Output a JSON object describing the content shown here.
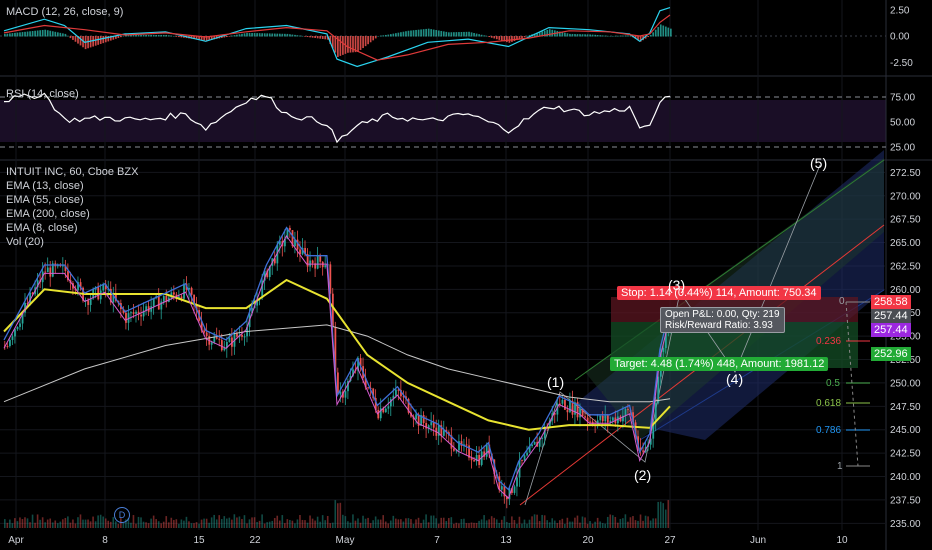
{
  "panes": {
    "macd": {
      "label": "MACD (12, 26, close, 9)",
      "ticks": [
        "2.50",
        "0.00",
        "-2.50"
      ]
    },
    "rsi": {
      "label": "RSI (14, close)",
      "ticks": [
        "75.00",
        "50.00",
        "25.00"
      ]
    },
    "price": {
      "symbol_label": "INTUIT INC, 60, Cboe BZX",
      "indicators": [
        "EMA (13, close)",
        "EMA (55, close)",
        "EMA (200, close)",
        "EMA (8, close)",
        "Vol (20)"
      ],
      "ticks": [
        "272.50",
        "270.00",
        "267.50",
        "265.00",
        "262.50",
        "260.00",
        "257.50",
        "255.00",
        "252.50",
        "250.00",
        "247.50",
        "245.00",
        "242.50",
        "240.00",
        "237.50",
        "235.00"
      ]
    }
  },
  "price_tags": {
    "stop": "258.58",
    "current": "257.44",
    "purple": "257.44",
    "target": "252.96"
  },
  "x_axis": [
    "Apr",
    "8",
    "15",
    "22",
    "May",
    "7",
    "13",
    "20",
    "27",
    "Jun",
    "10"
  ],
  "position_tool": {
    "stop_label": "Stop: 1.14 (0.44%) 114, Amount: 750.34",
    "open_pnl": "Open P&L: 0.00, Qty: 219",
    "risk_reward": "Risk/Reward Ratio: 3.93",
    "target_label": "Target: 4.48 (1.74%) 448, Amount: 1981.12"
  },
  "fib_levels": [
    "0",
    "0.236",
    "0.5",
    "0.618",
    "0.786",
    "1"
  ],
  "wave_labels": [
    "(1)",
    "(2)",
    "(3)",
    "(4)",
    "(5)"
  ],
  "dividend_marker": "D",
  "colors": {
    "up": "#26a69a",
    "down": "#ef5350",
    "ema55": "#e8e330",
    "ema200": "#c8c8c8",
    "ema13": "#3f6fd8",
    "stop": "#f23645",
    "target": "#22ab36",
    "purple": "#9c27e0",
    "macd": "#2ad4f0",
    "signal": "#e03a3a"
  },
  "chart_data": {
    "type": "candlestick",
    "symbol": "INTUIT INC",
    "interval": "60",
    "ylim": [
      234.5,
      273.5
    ],
    "x": [
      "Apr 1",
      "Apr 8",
      "Apr 15",
      "Apr 22",
      "May 1",
      "May 7",
      "May 13",
      "May 20",
      "May 27",
      "Jun 3",
      "Jun 10"
    ],
    "price_path": [
      [
        0,
        254
      ],
      [
        2,
        258
      ],
      [
        4,
        262
      ],
      [
        6,
        262
      ],
      [
        8,
        259
      ],
      [
        10,
        260
      ],
      [
        12,
        257
      ],
      [
        14,
        258
      ],
      [
        16,
        259
      ],
      [
        18,
        260
      ],
      [
        20,
        255
      ],
      [
        22,
        254
      ],
      [
        24,
        256
      ],
      [
        26,
        262
      ],
      [
        28,
        266
      ],
      [
        30,
        263
      ],
      [
        32,
        263
      ],
      [
        33,
        248
      ],
      [
        35,
        252
      ],
      [
        37,
        247
      ],
      [
        39,
        249
      ],
      [
        41,
        246
      ],
      [
        43,
        245
      ],
      [
        45,
        243
      ],
      [
        47,
        242
      ],
      [
        48,
        243
      ],
      [
        49,
        239
      ],
      [
        50,
        238
      ],
      [
        51,
        241
      ],
      [
        53,
        244
      ],
      [
        55,
        248
      ],
      [
        57,
        247
      ],
      [
        58,
        246
      ],
      [
        60,
        246
      ],
      [
        62,
        247
      ],
      [
        63,
        242
      ],
      [
        64,
        244
      ],
      [
        65,
        253
      ],
      [
        66,
        257.4
      ]
    ],
    "ema55": [
      [
        0,
        255.5
      ],
      [
        4,
        260
      ],
      [
        8,
        259.5
      ],
      [
        12,
        259.5
      ],
      [
        16,
        259.5
      ],
      [
        20,
        258
      ],
      [
        24,
        258
      ],
      [
        28,
        261
      ],
      [
        32,
        259
      ],
      [
        36,
        253
      ],
      [
        40,
        250
      ],
      [
        44,
        248
      ],
      [
        48,
        246
      ],
      [
        52,
        245
      ],
      [
        56,
        245.5
      ],
      [
        60,
        245.5
      ],
      [
        64,
        245.2
      ],
      [
        66,
        247.5
      ]
    ],
    "ema200": [
      [
        0,
        248
      ],
      [
        8,
        251.5
      ],
      [
        16,
        254
      ],
      [
        24,
        255.5
      ],
      [
        32,
        256.2
      ],
      [
        36,
        255
      ],
      [
        40,
        253
      ],
      [
        44,
        251.5
      ],
      [
        48,
        250.5
      ],
      [
        52,
        249.5
      ],
      [
        56,
        248.5
      ],
      [
        60,
        248
      ],
      [
        64,
        248
      ],
      [
        66,
        248.3
      ]
    ],
    "rsi": [
      [
        0,
        72
      ],
      [
        4,
        78
      ],
      [
        6,
        52
      ],
      [
        10,
        54
      ],
      [
        14,
        52
      ],
      [
        18,
        58
      ],
      [
        20,
        44
      ],
      [
        24,
        72
      ],
      [
        26,
        76
      ],
      [
        28,
        58
      ],
      [
        32,
        49
      ],
      [
        33,
        30
      ],
      [
        35,
        46
      ],
      [
        38,
        56
      ],
      [
        42,
        51
      ],
      [
        46,
        58
      ],
      [
        50,
        42
      ],
      [
        54,
        66
      ],
      [
        58,
        58
      ],
      [
        62,
        64
      ],
      [
        63,
        45
      ],
      [
        64,
        44
      ],
      [
        65,
        72
      ],
      [
        66,
        73
      ]
    ],
    "macd": [
      [
        0,
        0.5
      ],
      [
        4,
        1.6
      ],
      [
        6,
        1.0
      ],
      [
        8,
        -0.6
      ],
      [
        12,
        0.2
      ],
      [
        16,
        0.4
      ],
      [
        20,
        -0.5
      ],
      [
        24,
        0.7
      ],
      [
        28,
        1.0
      ],
      [
        32,
        0.2
      ],
      [
        33,
        -2.2
      ],
      [
        35,
        -2.9
      ],
      [
        38,
        -2.0
      ],
      [
        42,
        -0.6
      ],
      [
        46,
        -0.3
      ],
      [
        50,
        -1.0
      ],
      [
        54,
        0.8
      ],
      [
        58,
        0.6
      ],
      [
        62,
        0.2
      ],
      [
        63,
        -0.5
      ],
      [
        64,
        0.3
      ],
      [
        65,
        2.4
      ],
      [
        66,
        2.7
      ]
    ],
    "signal": [
      [
        0,
        0.3
      ],
      [
        4,
        1.0
      ],
      [
        8,
        0.6
      ],
      [
        12,
        0.1
      ],
      [
        16,
        0.3
      ],
      [
        20,
        -0.1
      ],
      [
        24,
        0.4
      ],
      [
        28,
        0.8
      ],
      [
        32,
        0.5
      ],
      [
        34,
        -1.0
      ],
      [
        37,
        -2.3
      ],
      [
        40,
        -1.8
      ],
      [
        44,
        -0.8
      ],
      [
        48,
        -0.6
      ],
      [
        52,
        -0.2
      ],
      [
        56,
        0.5
      ],
      [
        60,
        0.4
      ],
      [
        63,
        0.0
      ],
      [
        64,
        0.2
      ],
      [
        65,
        1.3
      ],
      [
        66,
        2.0
      ]
    ]
  }
}
